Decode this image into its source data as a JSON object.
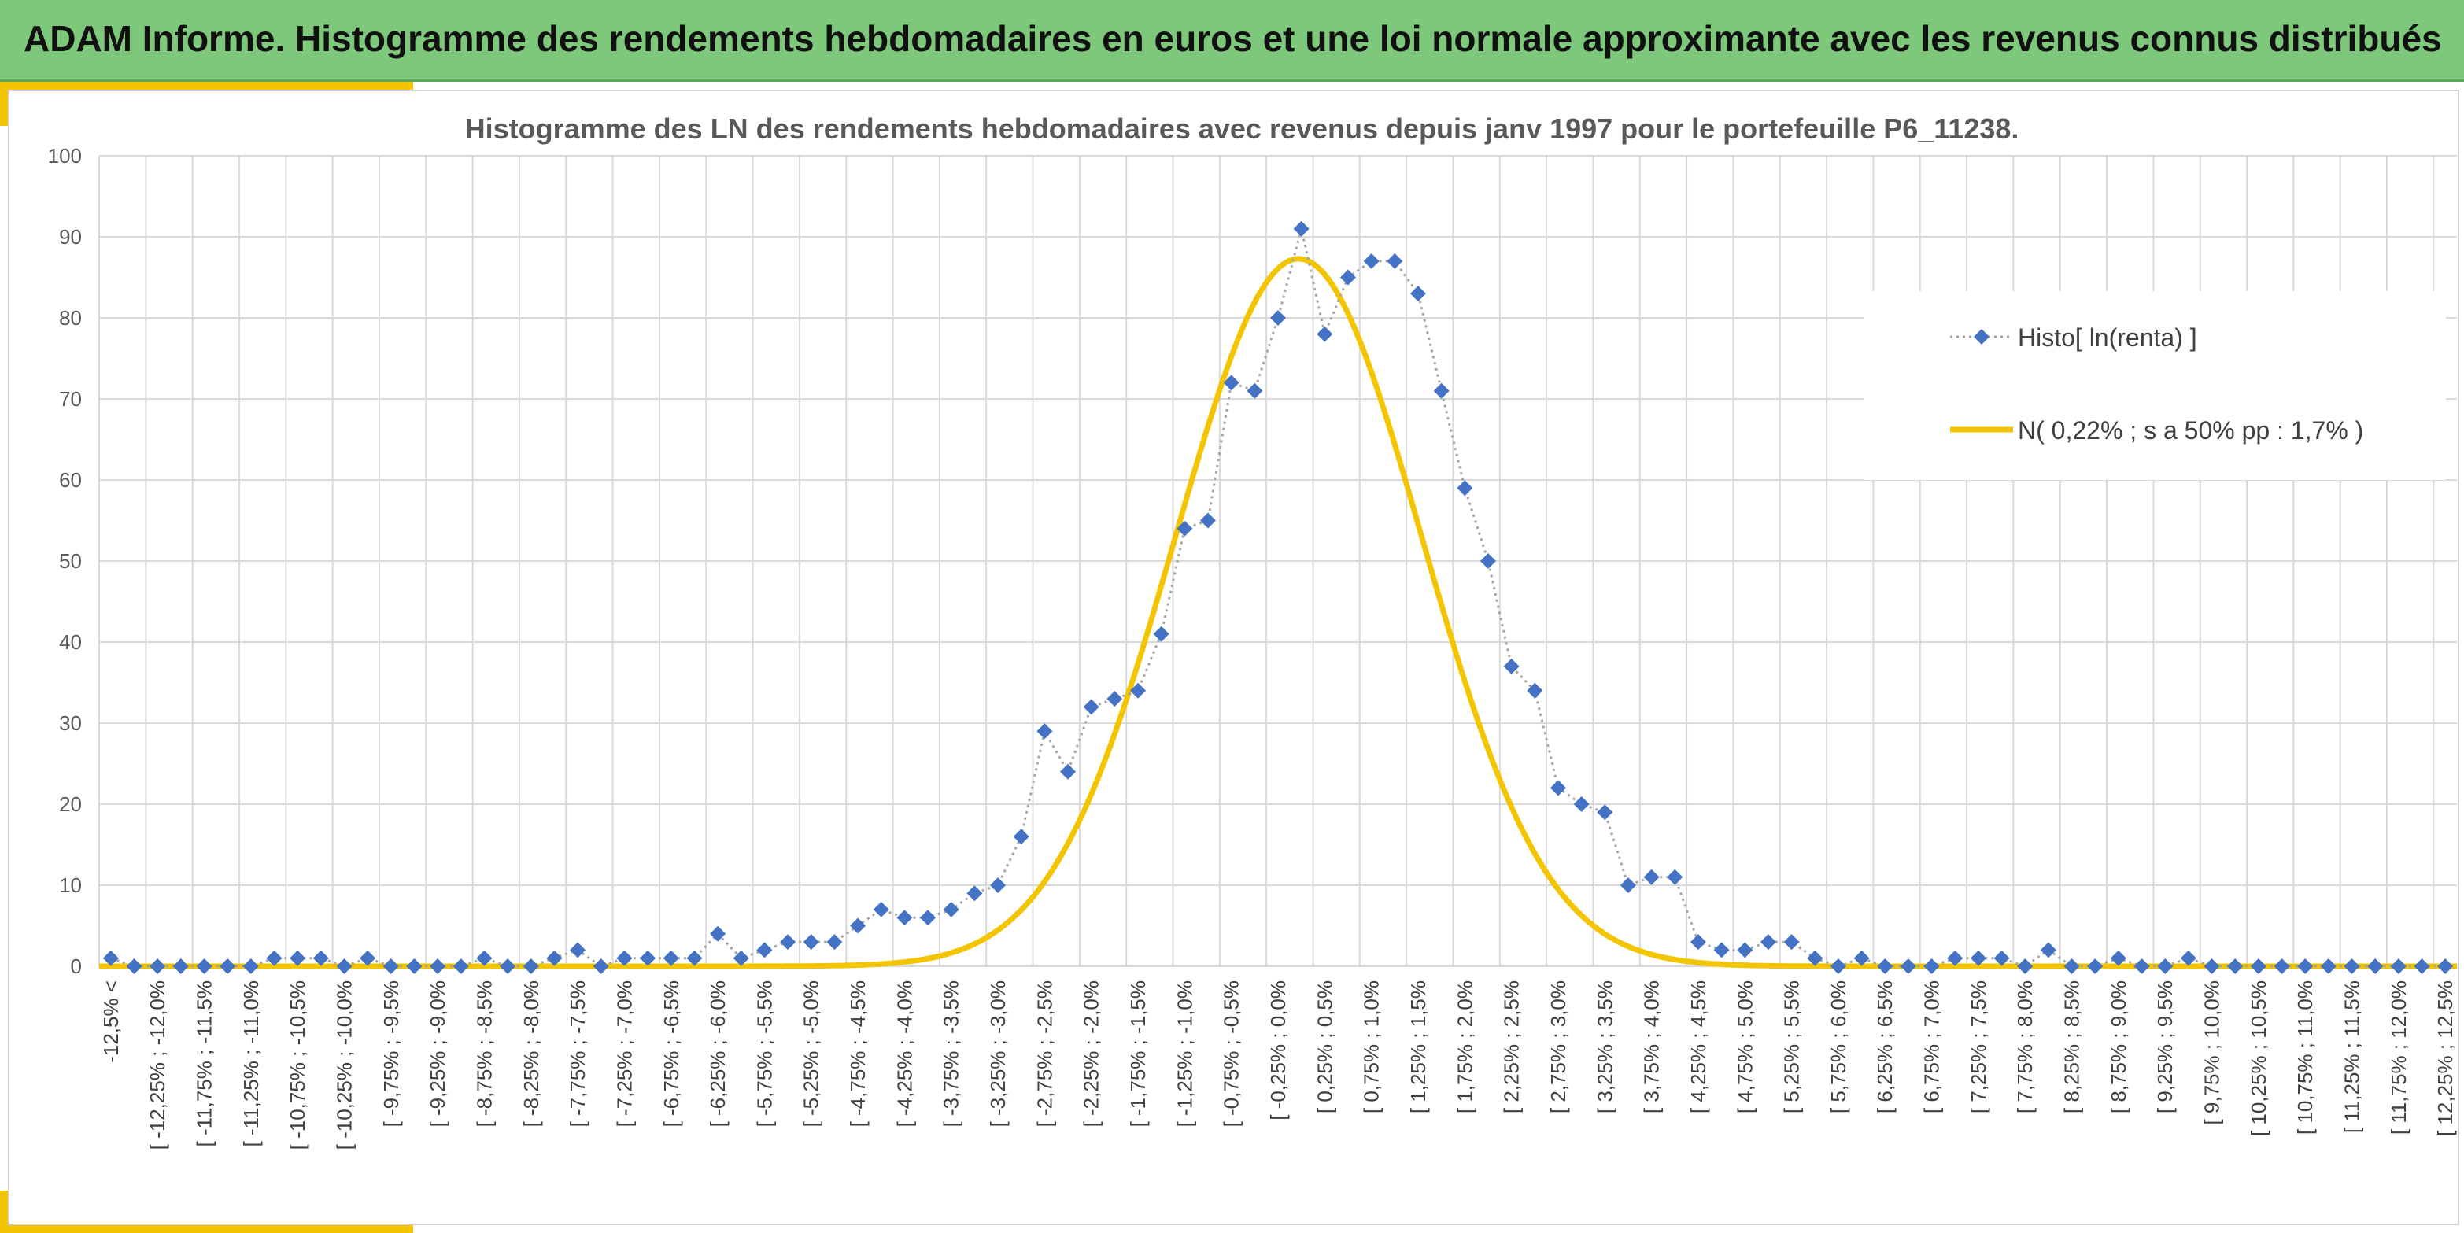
{
  "header": {
    "title": "ADAM Informe. Histogramme des rendements hebdomadaires en euros et une loi normale approximante avec les revenus connus distribués"
  },
  "chart_data": {
    "type": "line",
    "title": "Histogramme des LN des rendements hebdomadaires avec revenus depuis janv 1997 pour le portefeuille P6_11238.",
    "xlabel": "",
    "ylabel": "",
    "ylim": [
      0,
      100
    ],
    "yticks": [
      0,
      10,
      20,
      30,
      40,
      50,
      60,
      70,
      80,
      90,
      100
    ],
    "grid": true,
    "legend_position": "right",
    "categories": [
      "-12,5% <",
      "[ -12,25% ; -12,0%",
      "[ -11,75% ; -11,5%",
      "[ -11,25% ; -11,0%",
      "[ -10,75% ; -10,5%",
      "[ -10,25% ; -10,0%",
      "[ -9,75% ; -9,5%",
      "[ -9,25% ; -9,0%",
      "[ -8,75% ; -8,5%",
      "[ -8,25% ; -8,0%",
      "[ -7,75% ; -7,5%",
      "[ -7,25% ; -7,0%",
      "[ -6,75% ; -6,5%",
      "[ -6,25% ; -6,0%",
      "[ -5,75% ; -5,5%",
      "[ -5,25% ; -5,0%",
      "[ -4,75% ; -4,5%",
      "[ -4,25% ; -4,0%",
      "[ -3,75% ; -3,5%",
      "[ -3,25% ; -3,0%",
      "[ -2,75% ; -2,5%",
      "[ -2,25% ; -2,0%",
      "[ -1,75% ; -1,5%",
      "[ -1,25% ; -1,0%",
      "[ -0,75% ; -0,5%",
      "[ -0,25% ; 0,0%",
      "[ 0,25% ; 0,5%",
      "[ 0,75% ; 1,0%",
      "[ 1,25% ; 1,5%",
      "[ 1,75% ; 2,0%",
      "[ 2,25% ; 2,5%",
      "[ 2,75% ; 3,0%",
      "[ 3,25% ; 3,5%",
      "[ 3,75% ; 4,0%",
      "[ 4,25% ; 4,5%",
      "[ 4,75% ; 5,0%",
      "[ 5,25% ; 5,5%",
      "[ 5,75% ; 6,0%",
      "[ 6,25% ; 6,5%",
      "[ 6,75% ; 7,0%",
      "[ 7,25% ; 7,5%",
      "[ 7,75% ; 8,0%",
      "[ 8,25% ; 8,5%",
      "[ 8,75% ; 9,0%",
      "[ 9,25% ; 9,5%",
      "[ 9,75% ; 10,0%",
      "[ 10,25% ; 10,5%",
      "[ 10,75% ; 11,0%",
      "[ 11,25% ; 11,5%",
      "[ 11,75% ; 12,0%",
      "[ 12,25% ; 12,5%"
    ],
    "x_range": [
      -12.625,
      12.625
    ],
    "series": [
      {
        "name": "Histo[ ln(renta) ]",
        "style": "dotted-diamond",
        "color": "#4472c4",
        "line_color": "#a6a6a6",
        "x": [
          -12.5,
          -12.25,
          -12.0,
          -11.75,
          -11.5,
          -11.25,
          -11.0,
          -10.75,
          -10.5,
          -10.25,
          -10.0,
          -9.75,
          -9.5,
          -9.25,
          -9.0,
          -8.75,
          -8.5,
          -8.25,
          -8.0,
          -7.75,
          -7.5,
          -7.25,
          -7.0,
          -6.75,
          -6.5,
          -6.25,
          -6.0,
          -5.75,
          -5.5,
          -5.25,
          -5.0,
          -4.75,
          -4.5,
          -4.25,
          -4.0,
          -3.75,
          -3.5,
          -3.25,
          -3.0,
          -2.75,
          -2.5,
          -2.25,
          -2.0,
          -1.75,
          -1.5,
          -1.25,
          -1.0,
          -0.75,
          -0.5,
          -0.25,
          0.0,
          0.25,
          0.5,
          0.75,
          1.0,
          1.25,
          1.5,
          1.75,
          2.0,
          2.25,
          2.5,
          2.75,
          3.0,
          3.25,
          3.5,
          3.75,
          4.0,
          4.25,
          4.5,
          4.75,
          5.0,
          5.25,
          5.5,
          5.75,
          6.0,
          6.25,
          6.5,
          6.75,
          7.0,
          7.25,
          7.5,
          7.75,
          8.0,
          8.25,
          8.5,
          8.75,
          9.0,
          9.25,
          9.5,
          9.75,
          10.0,
          10.25,
          10.5,
          10.75,
          11.0,
          11.25,
          11.5,
          11.75,
          12.0,
          12.25,
          12.5
        ],
        "values": [
          1,
          0,
          0,
          0,
          0,
          0,
          0,
          1,
          1,
          1,
          0,
          1,
          0,
          0,
          0,
          0,
          1,
          0,
          0,
          1,
          2,
          0,
          1,
          1,
          1,
          1,
          4,
          1,
          2,
          3,
          3,
          3,
          5,
          7,
          6,
          6,
          7,
          9,
          10,
          16,
          29,
          24,
          32,
          33,
          34,
          41,
          54,
          55,
          72,
          71,
          80,
          91,
          78,
          85,
          87,
          87,
          83,
          71,
          59,
          50,
          37,
          34,
          22,
          20,
          19,
          10,
          11,
          11,
          3,
          2,
          2,
          3,
          3,
          1,
          0,
          1,
          0,
          0,
          0,
          1,
          1,
          1,
          0,
          2,
          0,
          0,
          1,
          0,
          0,
          1,
          0,
          0,
          0,
          0,
          0,
          0,
          0,
          0,
          0,
          0,
          0
        ]
      },
      {
        "name": "N( 0,22% ; s a 50% pp : 1,7% )",
        "style": "smooth-line",
        "color": "#f2c500",
        "distribution": {
          "mean": 0.22,
          "peak": 87.3,
          "sigma": 1.32
        }
      }
    ]
  }
}
